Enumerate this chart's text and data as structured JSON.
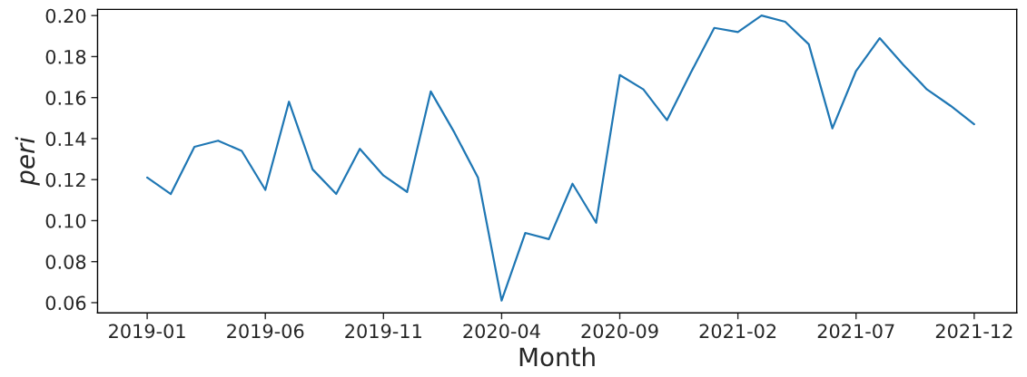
{
  "chart_data": {
    "type": "line",
    "xlabel": "Month",
    "ylabel": "peri",
    "categories": [
      "2019-01",
      null,
      null,
      null,
      null,
      "2019-06",
      null,
      null,
      null,
      null,
      "2019-11",
      null,
      null,
      null,
      null,
      "2020-04",
      null,
      null,
      null,
      null,
      "2020-09",
      null,
      null,
      null,
      null,
      "2021-02",
      null,
      null,
      null,
      null,
      "2021-07",
      null,
      null,
      null,
      null,
      "2021-12"
    ],
    "series": [
      {
        "color": "#1f77b4",
        "values": [
          0.121,
          0.113,
          0.136,
          0.139,
          0.134,
          0.115,
          0.158,
          0.125,
          0.113,
          0.135,
          0.122,
          0.114,
          0.163,
          0.143,
          0.121,
          0.061,
          0.094,
          0.091,
          0.118,
          0.099,
          0.171,
          0.164,
          0.149,
          0.172,
          0.194,
          0.192,
          0.2,
          0.197,
          0.186,
          0.145,
          0.173,
          0.189,
          0.176,
          0.164,
          0.156,
          0.147
        ]
      }
    ],
    "ylim": [
      0.055,
      0.203
    ],
    "yticks": [
      {
        "value": 0.06,
        "label": "0.06"
      },
      {
        "value": 0.08,
        "label": "0.08"
      },
      {
        "value": 0.1,
        "label": "0.10"
      },
      {
        "value": 0.12,
        "label": "0.12"
      },
      {
        "value": 0.14,
        "label": "0.14"
      },
      {
        "value": 0.16,
        "label": "0.16"
      },
      {
        "value": 0.18,
        "label": "0.18"
      },
      {
        "value": 0.2,
        "label": "0.20"
      }
    ],
    "grid": false,
    "legend": false,
    "marker": "none",
    "line_style": "solid"
  }
}
